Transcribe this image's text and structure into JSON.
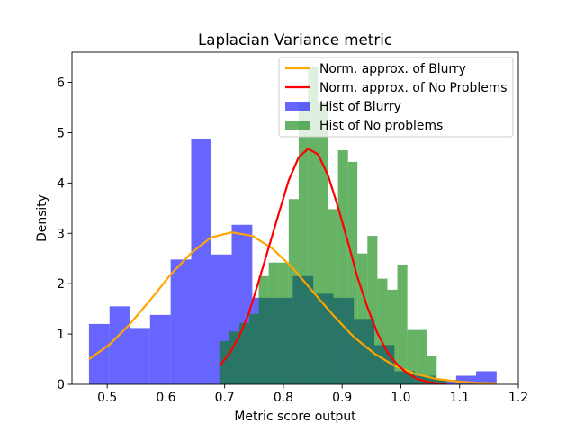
{
  "chart_data": {
    "type": "histogram",
    "title": "Laplacian Variance metric",
    "xlabel": "Metric score output",
    "ylabel": "Density",
    "xlim": [
      0.44,
      1.2
    ],
    "ylim": [
      0,
      6.6
    ],
    "xticks": [
      0.5,
      0.6,
      0.7,
      0.8,
      0.9,
      1.0,
      1.1,
      1.2
    ],
    "xtick_labels": [
      "0.5",
      "0.6",
      "0.7",
      "0.8",
      "0.9",
      "1.0",
      "1.1",
      "1.2"
    ],
    "yticks": [
      0,
      1,
      2,
      3,
      4,
      5,
      6
    ],
    "ytick_labels": [
      "0",
      "1",
      "2",
      "3",
      "4",
      "5",
      "6"
    ],
    "grid": false,
    "legend_position": "top-right",
    "legend": [
      {
        "label": "Norm. approx. of Blurry",
        "kind": "line",
        "color": "#ffa500"
      },
      {
        "label": "Norm. approx. of No Problems",
        "kind": "line",
        "color": "#ff0000"
      },
      {
        "label": "Hist of Blurry",
        "kind": "patch",
        "color": "#0000ff",
        "alpha": 0.6
      },
      {
        "label": "Hist of No problems",
        "kind": "patch",
        "color": "#008000",
        "alpha": 0.6
      }
    ],
    "histograms": [
      {
        "name": "Hist of Blurry",
        "color": "#0000ff",
        "alpha": 0.6,
        "bin_edges": [
          0.469,
          0.504,
          0.538,
          0.573,
          0.608,
          0.643,
          0.677,
          0.712,
          0.747,
          0.781,
          0.816,
          0.851,
          0.885,
          0.92,
          0.955,
          0.989,
          1.024,
          1.059,
          1.094,
          1.128,
          1.163
        ],
        "values": [
          1.2,
          1.55,
          1.12,
          1.38,
          2.48,
          4.88,
          2.58,
          3.17,
          1.72,
          1.72,
          2.15,
          1.8,
          1.72,
          1.3,
          0.78,
          0.26,
          0.17,
          0.09,
          0.17,
          0.26
        ]
      },
      {
        "name": "Hist of No problems",
        "color": "#008000",
        "alpha": 0.6,
        "bin_edges": [
          0.691,
          0.708,
          0.725,
          0.742,
          0.758,
          0.775,
          0.792,
          0.809,
          0.826,
          0.842,
          0.859,
          0.876,
          0.893,
          0.91,
          0.926,
          0.943,
          0.96,
          0.977,
          0.994,
          1.011,
          1.027,
          1.044,
          1.061,
          1.078
        ],
        "values": [
          0.86,
          1.05,
          1.22,
          1.4,
          2.15,
          2.42,
          2.42,
          3.68,
          5.6,
          6.32,
          5.6,
          3.48,
          4.65,
          4.42,
          2.6,
          2.95,
          2.1,
          1.88,
          2.38,
          1.08,
          1.08,
          0.56,
          0.1
        ]
      }
    ],
    "series": [
      {
        "name": "Norm. approx. of Blurry",
        "color": "#ffa500",
        "x": [
          0.469,
          0.504,
          0.538,
          0.573,
          0.608,
          0.643,
          0.677,
          0.712,
          0.747,
          0.781,
          0.816,
          0.851,
          0.885,
          0.92,
          0.955,
          0.989,
          1.024,
          1.059,
          1.094,
          1.128,
          1.163
        ],
        "y": [
          0.5,
          0.79,
          1.19,
          1.67,
          2.18,
          2.61,
          2.92,
          3.02,
          2.95,
          2.7,
          2.31,
          1.83,
          1.37,
          0.94,
          0.61,
          0.37,
          0.21,
          0.11,
          0.06,
          0.03,
          0.02
        ]
      },
      {
        "name": "Norm. approx. of No Problems",
        "color": "#ff0000",
        "x": [
          0.691,
          0.708,
          0.725,
          0.742,
          0.758,
          0.775,
          0.792,
          0.809,
          0.826,
          0.842,
          0.859,
          0.876,
          0.893,
          0.91,
          0.926,
          0.943,
          0.96,
          0.977,
          0.994,
          1.011,
          1.027,
          1.044,
          1.061,
          1.078
        ],
        "y": [
          0.36,
          0.61,
          0.96,
          1.44,
          2.05,
          2.72,
          3.39,
          4.05,
          4.51,
          4.68,
          4.57,
          4.15,
          3.52,
          2.82,
          2.13,
          1.53,
          1.02,
          0.64,
          0.39,
          0.22,
          0.11,
          0.05,
          0.02,
          0.01
        ],
        "note_visible_range": [
          0.691,
          1.086
        ]
      }
    ],
    "overlap_color": "#2a7a6e"
  }
}
